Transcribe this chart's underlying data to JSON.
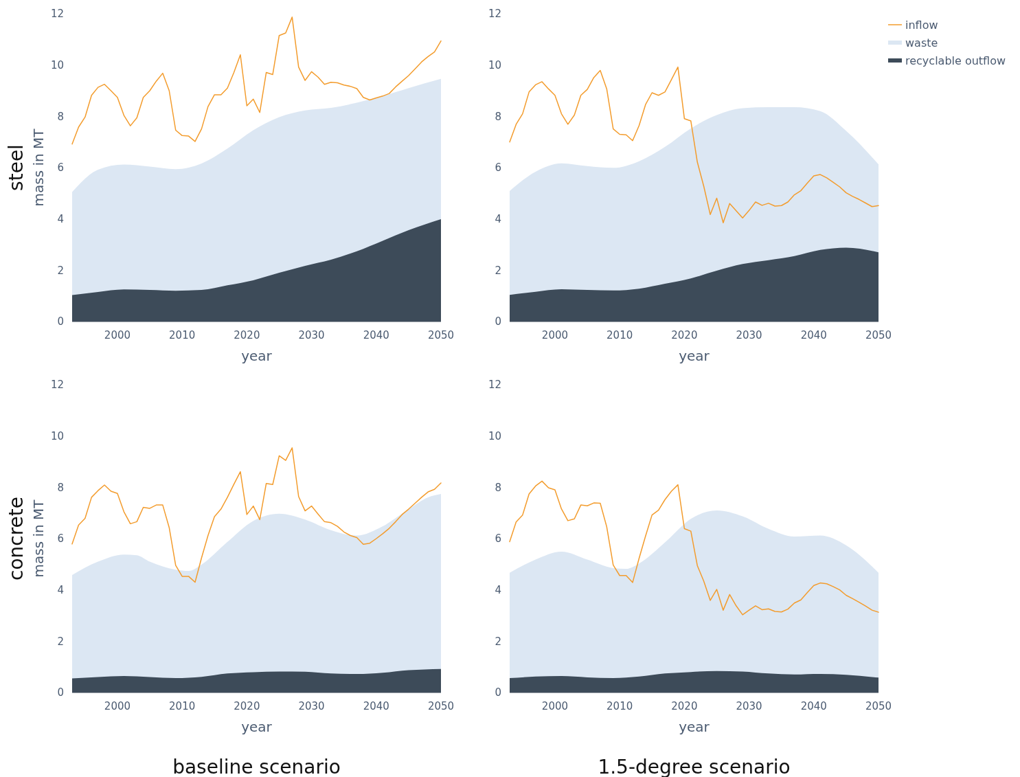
{
  "chart_data": [
    {
      "type": "area",
      "ylabel": "mass in MT",
      "xlabel": "year",
      "annotations": [
        "steel"
      ],
      "xlim": [
        1993,
        2050
      ],
      "xticks": [
        2000,
        2010,
        2020,
        2030,
        2040,
        2050
      ],
      "ylim": [
        0,
        12
      ],
      "yticks": [
        0,
        2,
        4,
        6,
        8,
        10,
        12
      ],
      "grid": false,
      "x": [
        1993,
        1994,
        1995,
        1996,
        1997,
        1998,
        1999,
        2000,
        2001,
        2002,
        2003,
        2004,
        2005,
        2006,
        2007,
        2008,
        2009,
        2010,
        2011,
        2012,
        2013,
        2014,
        2015,
        2016,
        2017,
        2018,
        2019,
        2020,
        2021,
        2022,
        2023,
        2024,
        2025,
        2026,
        2027,
        2028,
        2029,
        2030,
        2031,
        2032,
        2033,
        2034,
        2035,
        2036,
        2037,
        2038,
        2039,
        2040,
        2041,
        2042,
        2043,
        2044,
        2045,
        2046,
        2047,
        2048,
        2049,
        2050
      ],
      "series": [
        {
          "type": "line",
          "color": "#f39c2d",
          "values": [
            6.92,
            7.58,
            7.97,
            8.82,
            9.13,
            9.25,
            9.0,
            8.74,
            8.04,
            7.63,
            7.94,
            8.74,
            9.0,
            9.37,
            9.68,
            9.0,
            7.46,
            7.25,
            7.23,
            7.02,
            7.51,
            8.38,
            8.84,
            8.84,
            9.1,
            9.71,
            10.4,
            8.41,
            8.67,
            8.15,
            9.71,
            9.63,
            11.15,
            11.25,
            11.87,
            9.92,
            9.4,
            9.74,
            9.53,
            9.25,
            9.33,
            9.31,
            9.22,
            9.17,
            9.08,
            8.74,
            8.64,
            8.72,
            8.79,
            8.89,
            9.15,
            9.37,
            9.59,
            9.85,
            10.12,
            10.33,
            10.51,
            10.94
          ]
        },
        {
          "color": "#dce7f3",
          "x": [
            1993,
            1997,
            2001,
            2005,
            2009,
            2013,
            2017,
            2021,
            2025,
            2029,
            2033,
            2037,
            2041,
            2045,
            2050
          ],
          "values": [
            5.05,
            5.92,
            6.12,
            6.04,
            5.94,
            6.16,
            6.74,
            7.46,
            7.97,
            8.23,
            8.33,
            8.53,
            8.79,
            9.1,
            9.46
          ]
        },
        {
          "color": "#3d4b59",
          "x": [
            1993,
            1997,
            2001,
            2005,
            2009,
            2013,
            2017,
            2021,
            2025,
            2029,
            2033,
            2037,
            2041,
            2045,
            2050
          ],
          "values": [
            1.03,
            1.15,
            1.25,
            1.23,
            1.2,
            1.23,
            1.41,
            1.61,
            1.9,
            2.17,
            2.41,
            2.74,
            3.15,
            3.56,
            3.99
          ]
        }
      ]
    },
    {
      "type": "area",
      "xlabel": "year",
      "legend": "top right",
      "xlim": [
        1993,
        2050
      ],
      "xticks": [
        2000,
        2010,
        2020,
        2030,
        2040,
        2050
      ],
      "ylim": [
        0,
        12
      ],
      "yticks": [
        0,
        2,
        4,
        6,
        8,
        10,
        12
      ],
      "grid": false,
      "x": [
        1993,
        1994,
        1995,
        1996,
        1997,
        1998,
        1999,
        2000,
        2001,
        2002,
        2003,
        2004,
        2005,
        2006,
        2007,
        2008,
        2009,
        2010,
        2011,
        2012,
        2013,
        2014,
        2015,
        2016,
        2017,
        2018,
        2019,
        2020,
        2021,
        2022,
        2023,
        2024,
        2025,
        2026,
        2027,
        2028,
        2029,
        2030,
        2031,
        2032,
        2033,
        2034,
        2035,
        2036,
        2037,
        2038,
        2039,
        2040,
        2041,
        2042,
        2043,
        2044,
        2045,
        2046,
        2047,
        2048,
        2049,
        2050
      ],
      "series": [
        {
          "type": "line",
          "name": "inflow",
          "color": "#f39c2d",
          "values": [
            7.0,
            7.69,
            8.1,
            8.95,
            9.23,
            9.35,
            9.07,
            8.82,
            8.1,
            7.69,
            8.05,
            8.82,
            9.05,
            9.51,
            9.79,
            9.07,
            7.51,
            7.3,
            7.28,
            7.05,
            7.64,
            8.46,
            8.92,
            8.82,
            8.95,
            9.43,
            9.92,
            7.91,
            7.82,
            6.22,
            5.27,
            4.17,
            4.81,
            3.85,
            4.6,
            4.32,
            4.04,
            4.33,
            4.66,
            4.53,
            4.61,
            4.5,
            4.52,
            4.66,
            4.94,
            5.1,
            5.4,
            5.68,
            5.73,
            5.6,
            5.43,
            5.25,
            5.02,
            4.88,
            4.76,
            4.62,
            4.48,
            4.52
          ]
        },
        {
          "name": "waste",
          "color": "#dce7f3",
          "x": [
            1993,
            1997,
            2001,
            2005,
            2009,
            2013,
            2017,
            2021,
            2025,
            2029,
            2033,
            2037,
            2041,
            2045,
            2050
          ],
          "values": [
            5.09,
            5.84,
            6.17,
            6.06,
            5.99,
            6.25,
            6.81,
            7.53,
            8.05,
            8.32,
            8.36,
            8.36,
            8.2,
            7.43,
            6.13
          ]
        },
        {
          "name": "recyclable outflow",
          "color": "#3d4b59",
          "x": [
            1993,
            1997,
            2001,
            2005,
            2009,
            2013,
            2017,
            2021,
            2025,
            2029,
            2033,
            2037,
            2041,
            2045,
            2050
          ],
          "values": [
            1.04,
            1.16,
            1.26,
            1.23,
            1.21,
            1.28,
            1.47,
            1.68,
            1.98,
            2.24,
            2.39,
            2.55,
            2.79,
            2.88,
            2.7
          ]
        }
      ]
    },
    {
      "type": "area",
      "title": "baseline scenario",
      "ylabel": "mass in MT",
      "xlabel": "year",
      "annotations": [
        "concrete"
      ],
      "xlim": [
        1993,
        2050
      ],
      "xticks": [
        2000,
        2010,
        2020,
        2030,
        2040,
        2050
      ],
      "ylim": [
        0,
        12
      ],
      "yticks": [
        0,
        2,
        4,
        6,
        8,
        10,
        12
      ],
      "grid": false,
      "x": [
        1993,
        1994,
        1995,
        1996,
        1997,
        1998,
        1999,
        2000,
        2001,
        2002,
        2003,
        2004,
        2005,
        2006,
        2007,
        2008,
        2009,
        2010,
        2011,
        2012,
        2013,
        2014,
        2015,
        2016,
        2017,
        2018,
        2019,
        2020,
        2021,
        2022,
        2023,
        2024,
        2025,
        2026,
        2027,
        2028,
        2029,
        2030,
        2031,
        2032,
        2033,
        2034,
        2035,
        2036,
        2037,
        2038,
        2039,
        2040,
        2041,
        2042,
        2043,
        2044,
        2045,
        2046,
        2047,
        2048,
        2049,
        2050
      ],
      "series": [
        {
          "type": "line",
          "color": "#f39c2d",
          "values": [
            5.79,
            6.53,
            6.79,
            7.61,
            7.87,
            8.09,
            7.85,
            7.76,
            7.05,
            6.58,
            6.66,
            7.22,
            7.18,
            7.31,
            7.31,
            6.43,
            4.96,
            4.53,
            4.53,
            4.3,
            5.25,
            6.12,
            6.86,
            7.15,
            7.61,
            8.12,
            8.61,
            6.94,
            7.27,
            6.74,
            8.15,
            8.11,
            9.23,
            9.05,
            9.54,
            7.64,
            7.08,
            7.27,
            6.96,
            6.66,
            6.62,
            6.48,
            6.26,
            6.12,
            6.04,
            5.78,
            5.82,
            6.0,
            6.19,
            6.4,
            6.66,
            6.94,
            7.15,
            7.38,
            7.61,
            7.82,
            7.92,
            8.17
          ]
        },
        {
          "color": "#dce7f3",
          "x": [
            1993,
            1997,
            2001,
            2003,
            2005,
            2009,
            2011,
            2013,
            2017,
            2021,
            2025,
            2029,
            2033,
            2037,
            2041,
            2045,
            2048,
            2050
          ],
          "values": [
            4.58,
            5.1,
            5.38,
            5.35,
            5.1,
            4.79,
            4.74,
            4.99,
            5.87,
            6.69,
            6.97,
            6.74,
            6.33,
            6.12,
            6.48,
            7.15,
            7.61,
            7.74
          ]
        },
        {
          "color": "#3d4b59",
          "x": [
            1993,
            1997,
            2001,
            2005,
            2009,
            2013,
            2017,
            2021,
            2025,
            2029,
            2033,
            2037,
            2041,
            2045,
            2050
          ],
          "values": [
            0.55,
            0.6,
            0.64,
            0.6,
            0.56,
            0.61,
            0.74,
            0.79,
            0.82,
            0.81,
            0.74,
            0.72,
            0.77,
            0.87,
            0.92
          ]
        }
      ]
    },
    {
      "type": "area",
      "title": "1.5-degree scenario",
      "xlabel": "year",
      "xlim": [
        1993,
        2050
      ],
      "xticks": [
        2000,
        2010,
        2020,
        2030,
        2040,
        2050
      ],
      "ylim": [
        0,
        12
      ],
      "yticks": [
        0,
        2,
        4,
        6,
        8,
        10,
        12
      ],
      "grid": false,
      "x": [
        1993,
        1994,
        1995,
        1996,
        1997,
        1998,
        1999,
        2000,
        2001,
        2002,
        2003,
        2004,
        2005,
        2006,
        2007,
        2008,
        2009,
        2010,
        2011,
        2012,
        2013,
        2014,
        2015,
        2016,
        2017,
        2018,
        2019,
        2020,
        2021,
        2022,
        2023,
        2024,
        2025,
        2026,
        2027,
        2028,
        2029,
        2030,
        2031,
        2032,
        2033,
        2034,
        2035,
        2036,
        2037,
        2038,
        2039,
        2040,
        2041,
        2042,
        2043,
        2044,
        2045,
        2046,
        2047,
        2048,
        2049,
        2050
      ],
      "series": [
        {
          "type": "line",
          "color": "#f39c2d",
          "values": [
            5.88,
            6.65,
            6.92,
            7.74,
            8.05,
            8.24,
            7.98,
            7.9,
            7.16,
            6.7,
            6.77,
            7.31,
            7.28,
            7.39,
            7.38,
            6.46,
            4.97,
            4.56,
            4.56,
            4.29,
            5.23,
            6.1,
            6.92,
            7.11,
            7.52,
            7.85,
            8.1,
            6.39,
            6.29,
            4.95,
            4.34,
            3.59,
            4.02,
            3.21,
            3.82,
            3.38,
            3.03,
            3.21,
            3.38,
            3.23,
            3.26,
            3.16,
            3.14,
            3.25,
            3.49,
            3.61,
            3.9,
            4.17,
            4.27,
            4.24,
            4.13,
            4.0,
            3.79,
            3.66,
            3.52,
            3.37,
            3.21,
            3.13
          ]
        },
        {
          "color": "#dce7f3",
          "x": [
            1993,
            1997,
            2001,
            2005,
            2009,
            2011,
            2013,
            2017,
            2021,
            2025,
            2029,
            2033,
            2037,
            2041,
            2045,
            2050
          ],
          "values": [
            4.67,
            5.18,
            5.49,
            5.18,
            4.85,
            4.82,
            5.03,
            5.85,
            6.77,
            7.1,
            6.87,
            6.38,
            6.08,
            6.12,
            5.74,
            4.67
          ]
        },
        {
          "color": "#3d4b59",
          "x": [
            1993,
            1997,
            2001,
            2005,
            2009,
            2013,
            2017,
            2021,
            2025,
            2029,
            2033,
            2037,
            2041,
            2045,
            2050
          ],
          "values": [
            0.56,
            0.62,
            0.64,
            0.59,
            0.56,
            0.62,
            0.74,
            0.8,
            0.84,
            0.82,
            0.74,
            0.7,
            0.72,
            0.69,
            0.58
          ]
        }
      ]
    }
  ]
}
